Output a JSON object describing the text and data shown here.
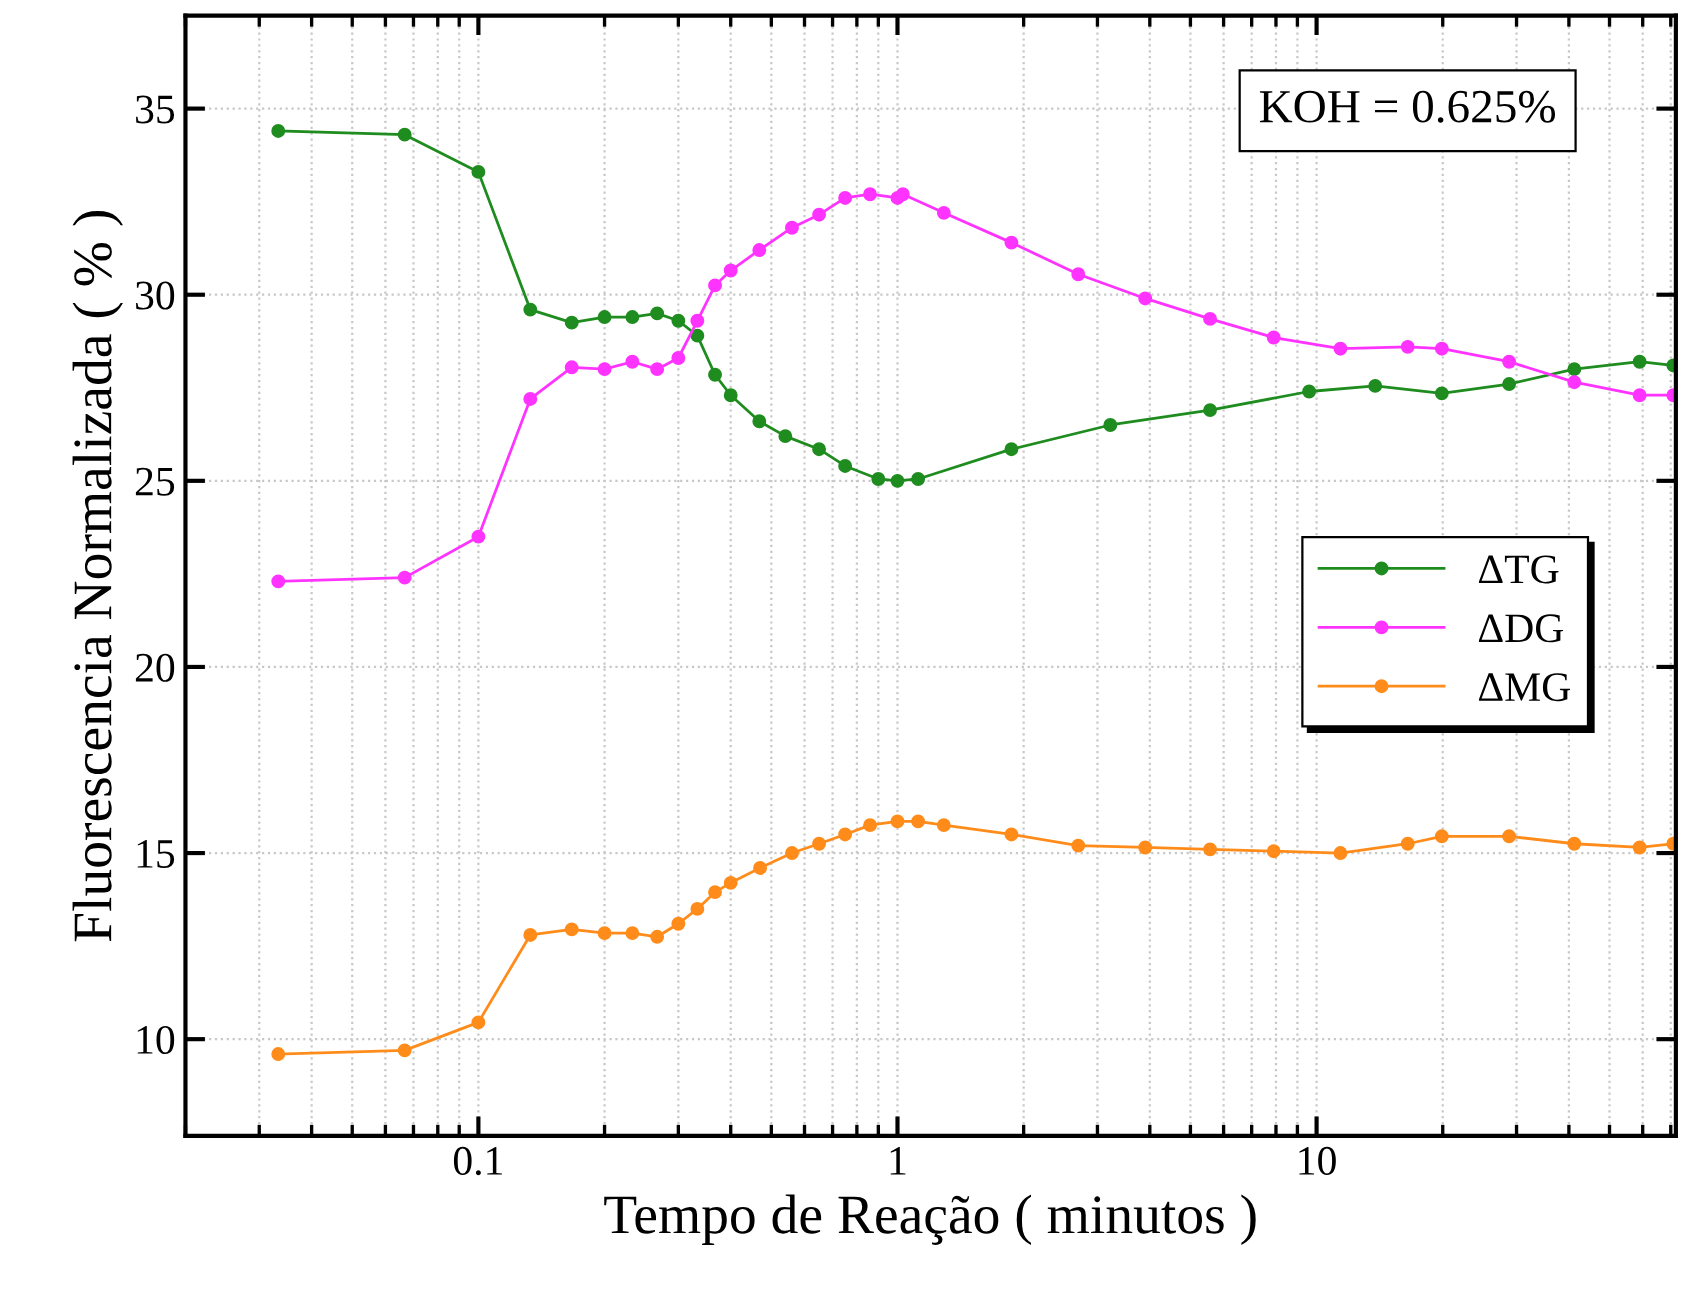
{
  "chart_data": {
    "type": "line",
    "xlabel": "Tempo de Reação ( minutos )",
    "ylabel": "Fluorescencia Normalizada ( % )",
    "annotations": [
      "KOH = 0.625%"
    ],
    "log": "x",
    "xlim": [
      0.02,
      72
    ],
    "xticks": [
      0.1,
      1,
      10
    ],
    "ylim": [
      7.4,
      37.5
    ],
    "yticks": [
      10,
      15,
      20,
      25,
      30,
      35
    ],
    "grid": true,
    "legend": "right",
    "marker": "circle",
    "line_style": "solid",
    "series": [
      {
        "name": "ΔTG",
        "color": "#1f8c1f",
        "x": [
          0.0333,
          0.0667,
          0.1,
          0.133,
          0.167,
          0.2,
          0.233,
          0.267,
          0.3,
          0.333,
          0.367,
          0.4,
          0.468,
          0.54,
          0.65,
          0.75,
          0.9,
          1.0,
          1.12,
          1.87,
          3.22,
          5.57,
          9.6,
          13.8,
          19.9,
          28.8,
          41.2,
          59,
          71
        ],
        "values": [
          34.4,
          34.3,
          33.3,
          29.6,
          29.25,
          29.4,
          29.4,
          29.5,
          29.3,
          28.9,
          27.85,
          27.3,
          26.6,
          26.2,
          25.85,
          25.4,
          25.05,
          25.0,
          25.05,
          25.85,
          26.5,
          26.9,
          27.4,
          27.55,
          27.35,
          27.6,
          28.0,
          28.2,
          28.1
        ]
      },
      {
        "name": "ΔDG",
        "color": "#ff33ff",
        "x": [
          0.0333,
          0.0667,
          0.1,
          0.133,
          0.167,
          0.2,
          0.233,
          0.267,
          0.3,
          0.333,
          0.367,
          0.4,
          0.468,
          0.56,
          0.65,
          0.75,
          0.86,
          1.0,
          1.03,
          1.29,
          1.87,
          2.7,
          3.9,
          5.57,
          7.9,
          11.4,
          16.5,
          19.9,
          28.8,
          41.2,
          59,
          71
        ],
        "values": [
          22.3,
          22.4,
          23.5,
          27.2,
          28.05,
          28.0,
          28.2,
          28.0,
          28.3,
          29.3,
          30.25,
          30.65,
          31.2,
          31.8,
          32.15,
          32.6,
          32.7,
          32.6,
          32.7,
          32.2,
          31.4,
          30.55,
          29.9,
          29.35,
          28.85,
          28.55,
          28.6,
          28.55,
          28.2,
          27.65,
          27.3,
          27.3
        ]
      },
      {
        "name": "ΔMG",
        "color": "#ff8c1a",
        "x": [
          0.0333,
          0.0667,
          0.1,
          0.133,
          0.167,
          0.2,
          0.233,
          0.267,
          0.3,
          0.333,
          0.367,
          0.4,
          0.47,
          0.56,
          0.65,
          0.75,
          0.86,
          1.0,
          1.12,
          1.29,
          1.87,
          2.7,
          3.9,
          5.57,
          7.9,
          11.4,
          16.5,
          19.9,
          28.8,
          41.2,
          59,
          71
        ],
        "values": [
          9.6,
          9.7,
          10.45,
          12.8,
          12.95,
          12.85,
          12.85,
          12.75,
          13.1,
          13.5,
          13.95,
          14.2,
          14.6,
          15.0,
          15.25,
          15.5,
          15.75,
          15.85,
          15.85,
          15.75,
          15.5,
          15.2,
          15.15,
          15.1,
          15.05,
          15.0,
          15.25,
          15.45,
          15.45,
          15.25,
          15.15,
          15.25
        ]
      }
    ]
  }
}
